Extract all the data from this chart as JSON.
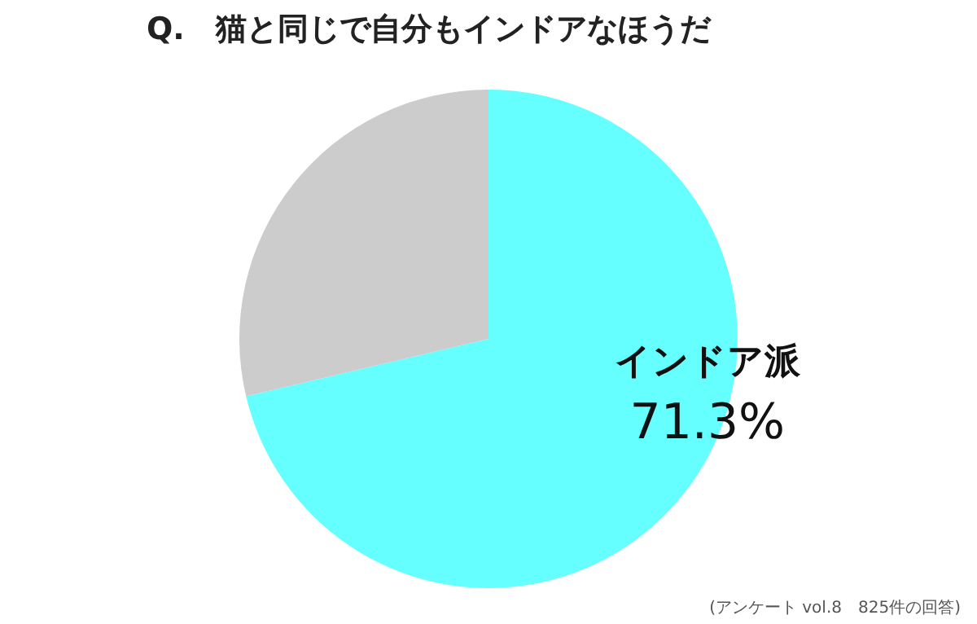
{
  "chart_data": {
    "type": "pie",
    "title": "Q.　猫と同じで自分もインドアなほうだ",
    "categories": [
      "インドア派",
      null
    ],
    "values": [
      71.3,
      28.7
    ],
    "colors": [
      "#66ffff",
      "#cccccc"
    ],
    "value_labels": [
      "71.3%",
      null
    ],
    "annotations": [
      "(アンケート vol.8　825件の回答)"
    ]
  }
}
